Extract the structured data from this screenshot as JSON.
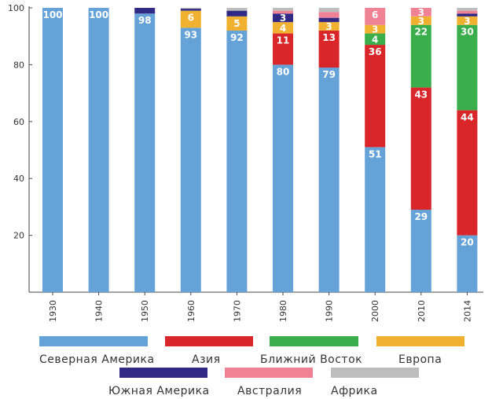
{
  "chart_data": {
    "type": "bar",
    "stacked": true,
    "categories": [
      "1930",
      "1940",
      "1950",
      "1960",
      "1970",
      "1980",
      "1990",
      "2000",
      "2010",
      "2014"
    ],
    "ylim": [
      0,
      100
    ],
    "yticks": [
      "20",
      "40",
      "60",
      "80",
      "100"
    ],
    "grid": false,
    "legend_position": "bottom",
    "series": [
      {
        "name": "Северная Америка",
        "color": "#65a2d8",
        "values": [
          100,
          100,
          98,
          93,
          92,
          80,
          79,
          51,
          29,
          20
        ],
        "labels": [
          "100",
          "100",
          "98",
          "93",
          "92",
          "80",
          "79",
          "51",
          "29",
          "20"
        ]
      },
      {
        "name": "Азия",
        "color": "#d9262b",
        "values": [
          0,
          0,
          0,
          0,
          0,
          11,
          13,
          36,
          43,
          44
        ],
        "labels": [
          "",
          "",
          "",
          "",
          "",
          "11",
          "13",
          "36",
          "43",
          "44"
        ]
      },
      {
        "name": "Ближний Восток",
        "color": "#3aae4a",
        "values": [
          0,
          0,
          0,
          0,
          0,
          0,
          0,
          4,
          22,
          30
        ],
        "labels": [
          "",
          "",
          "",
          "",
          "",
          "",
          "",
          "4",
          "22",
          "30"
        ]
      },
      {
        "name": "Европа",
        "color": "#f0b030",
        "values": [
          0,
          0,
          0,
          6,
          5,
          4,
          3,
          3,
          3,
          3
        ],
        "labels": [
          "",
          "",
          "",
          "6",
          "5",
          "4",
          "3",
          "3",
          "3",
          "3"
        ]
      },
      {
        "name": "Южная Америка",
        "color": "#302a85",
        "values": [
          0,
          0,
          2,
          0.7,
          2,
          3,
          1.5,
          0,
          0,
          1
        ],
        "labels": [
          "",
          "",
          "",
          "",
          "",
          "3",
          "",
          "",
          "",
          ""
        ]
      },
      {
        "name": "Австралия",
        "color": "#f08296",
        "values": [
          0,
          0,
          0,
          0,
          0,
          1,
          2,
          6,
          3,
          1
        ],
        "labels": [
          "",
          "",
          "",
          "",
          "",
          "",
          "",
          "6",
          "3",
          ""
        ]
      },
      {
        "name": "Африка",
        "color": "#bdbdbd",
        "values": [
          0,
          0,
          0,
          0.3,
          1,
          1,
          1.5,
          0,
          0,
          1
        ],
        "labels": [
          "",
          "",
          "",
          "",
          "",
          "",
          "",
          "",
          "",
          ""
        ]
      }
    ]
  }
}
